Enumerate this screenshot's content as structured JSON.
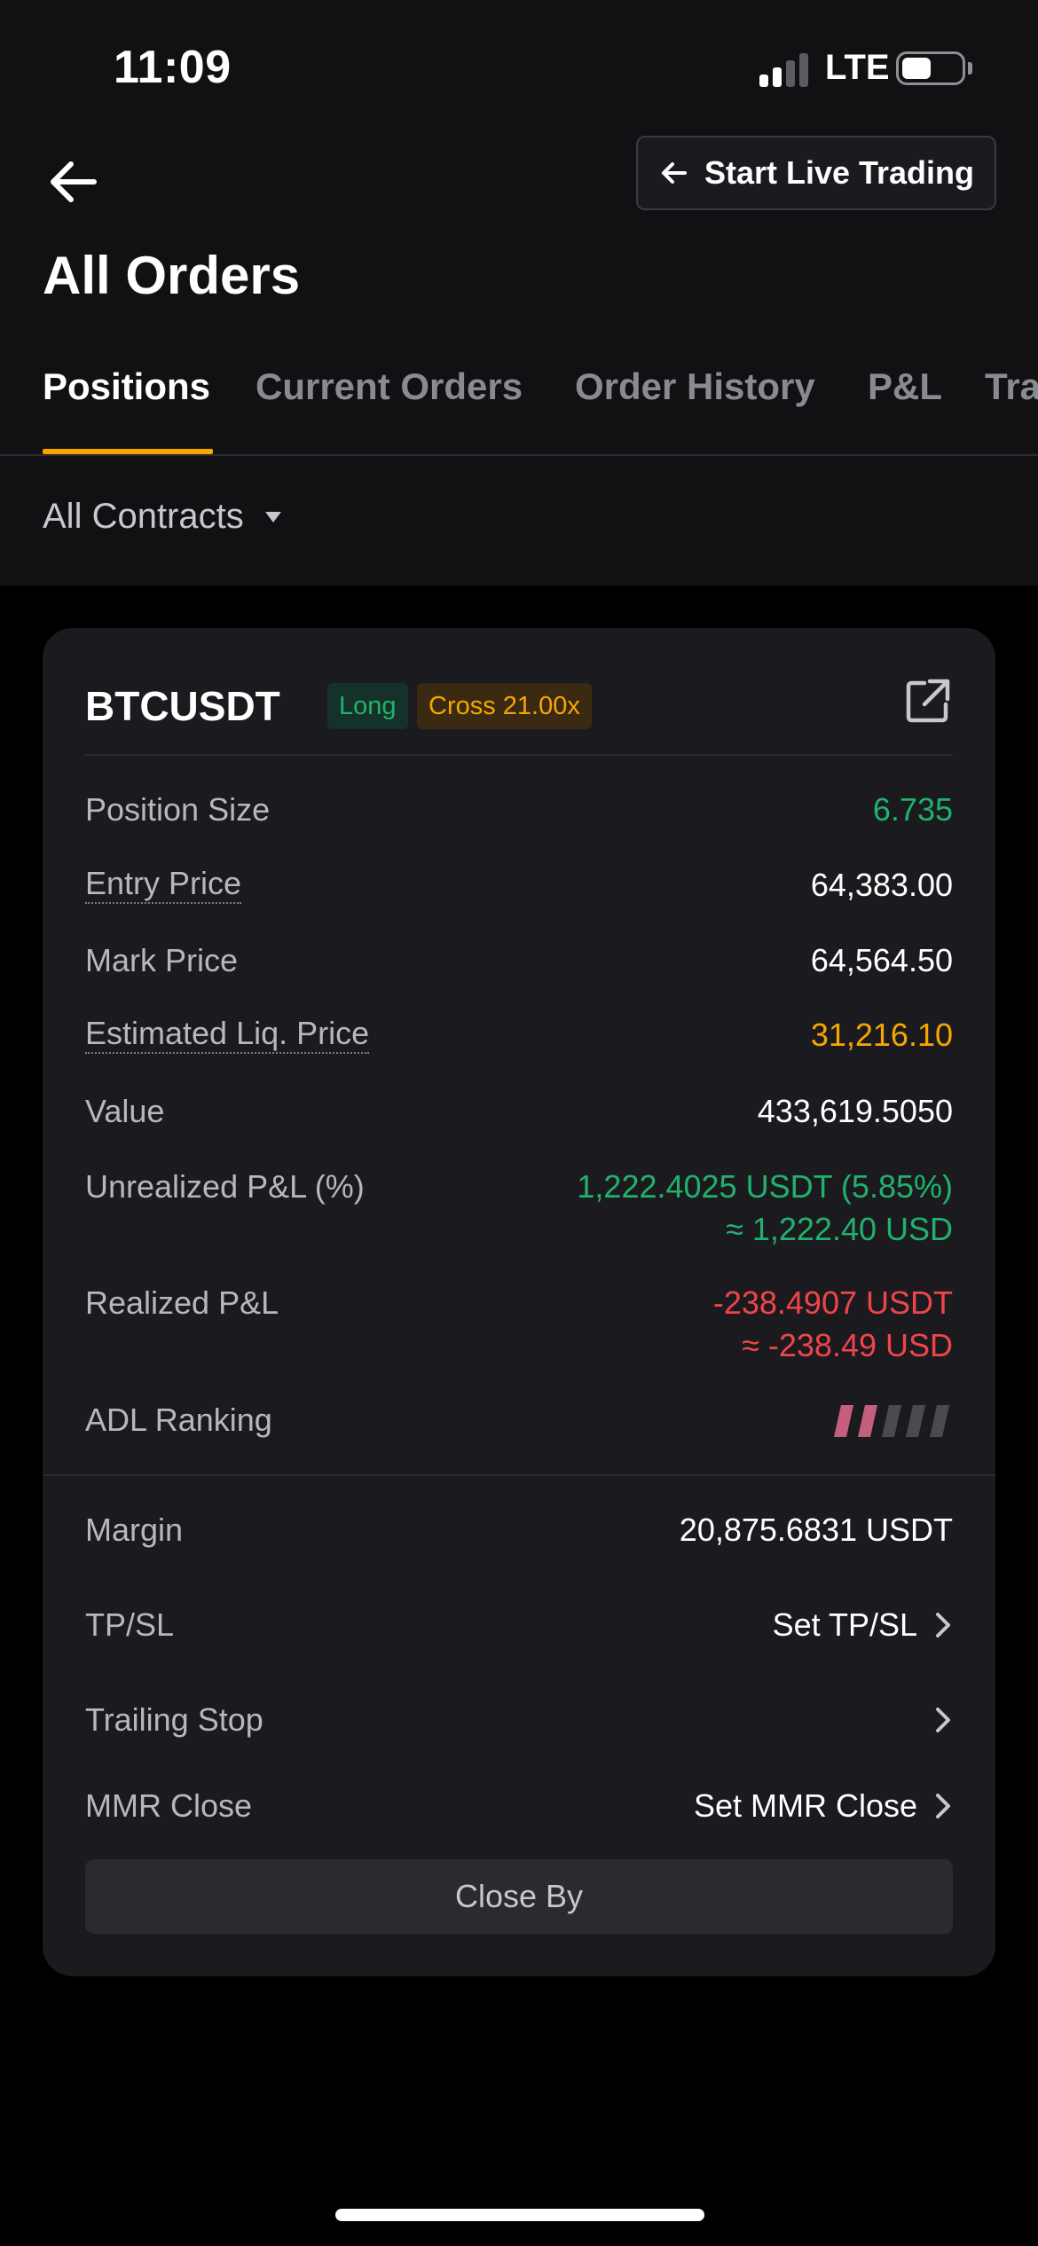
{
  "status_bar": {
    "time": "11:09",
    "network": "LTE"
  },
  "header": {
    "live_button_label": "Start Live Trading",
    "title": "All Orders"
  },
  "tabs": [
    {
      "label": "Positions",
      "active": true
    },
    {
      "label": "Current Orders",
      "active": false
    },
    {
      "label": "Order History",
      "active": false
    },
    {
      "label": "P&L",
      "active": false
    },
    {
      "label": "Tra",
      "active": false
    }
  ],
  "filter": {
    "label": "All Contracts"
  },
  "position": {
    "symbol": "BTCUSDT",
    "side_badge": "Long",
    "leverage_badge": "Cross 21.00x",
    "rows": {
      "size": {
        "label": "Position Size",
        "value": "6.735"
      },
      "entry": {
        "label": "Entry Price",
        "value": "64,383.00"
      },
      "mark": {
        "label": "Mark Price",
        "value": "64,564.50"
      },
      "liq": {
        "label": "Estimated Liq. Price",
        "value": "31,216.10"
      },
      "value": {
        "label": "Value",
        "value": "433,619.5050"
      },
      "upnl": {
        "label": "Unrealized P&L (%)",
        "value": "1,222.4025 USDT (5.85%)",
        "value_usd": "≈ 1,222.40 USD"
      },
      "rpnl": {
        "label": "Realized P&L",
        "value": "-238.4907 USDT",
        "value_usd": "≈ -238.49 USD"
      },
      "adl": {
        "label": "ADL Ranking",
        "level": 2,
        "max": 5
      }
    },
    "margin": {
      "label": "Margin",
      "value": "20,875.6831 USDT"
    },
    "tpsl": {
      "label": "TP/SL",
      "action": "Set TP/SL"
    },
    "trailing": {
      "label": "Trailing Stop"
    },
    "mmr": {
      "label": "MMR Close",
      "action": "Set MMR Close"
    },
    "close_by_label": "Close By"
  },
  "colors": {
    "accent": "#f7a600",
    "positive": "#20b26c",
    "negative": "#ef454a",
    "adl_active": "#c4607d",
    "adl_inactive": "#4a4b50"
  }
}
